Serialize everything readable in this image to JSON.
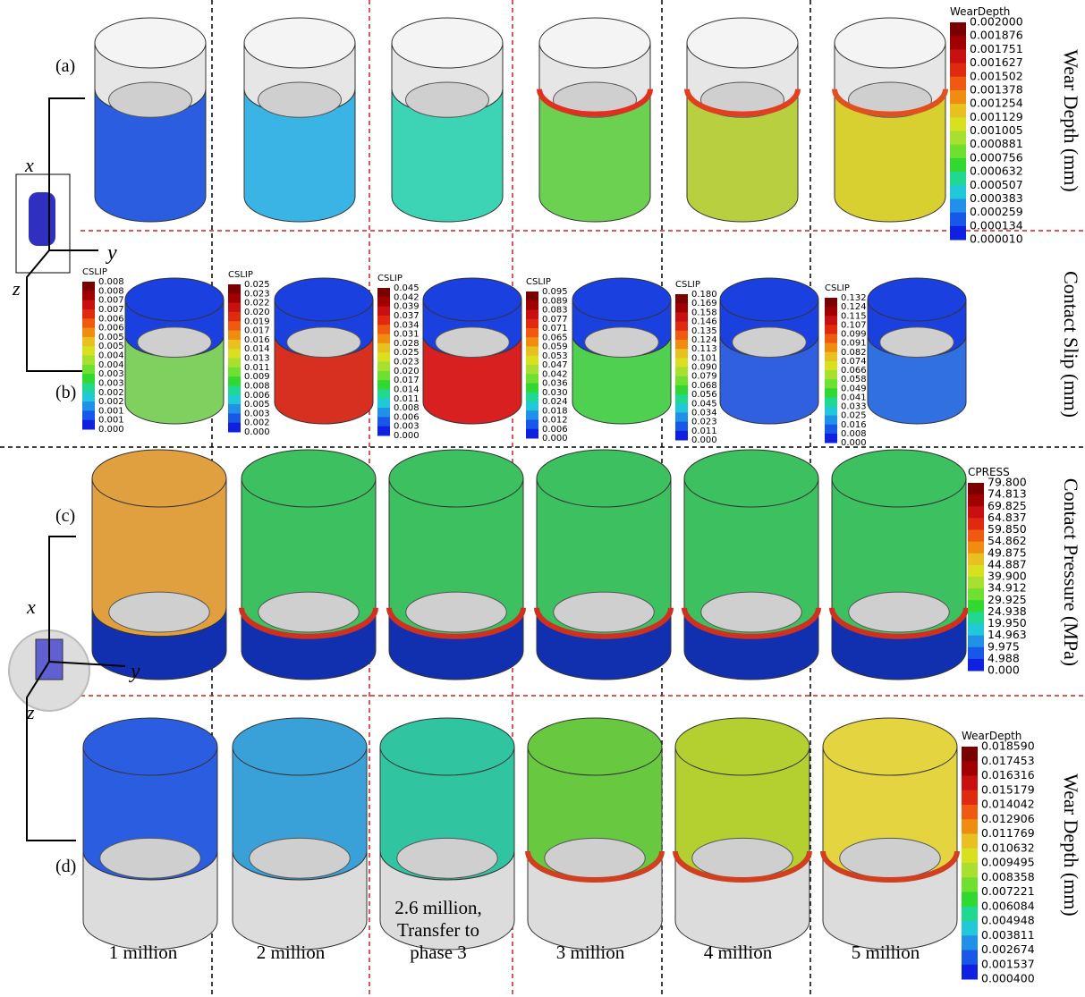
{
  "panels": [
    {
      "label": "(a)",
      "title": "Wear Depth (mm)"
    },
    {
      "label": "(b)",
      "title": "Contact Slip (mm)"
    },
    {
      "label": "(c)",
      "title": "Contact Pressure (MPa)"
    },
    {
      "label": "(d)",
      "title": "Wear Depth (mm)"
    }
  ],
  "legends": [
    {
      "title": "WearDepth",
      "values": [
        "0.002000",
        "0.001876",
        "0.001751",
        "0.001627",
        "0.001502",
        "0.001378",
        "0.001254",
        "0.001129",
        "0.001005",
        "0.000881",
        "0.000756",
        "0.000632",
        "0.000507",
        "0.000383",
        "0.000259",
        "0.000134",
        "0.000010"
      ]
    },
    {
      "title": "CSLIP",
      "values": [
        "0.008",
        "0.008",
        "0.007",
        "0.007",
        "0.006",
        "0.006",
        "0.005",
        "0.005",
        "0.004",
        "0.004",
        "0.003",
        "0.003",
        "0.002",
        "0.002",
        "0.001",
        "0.001",
        "0.000"
      ]
    },
    {
      "title": "CSLIP",
      "values": [
        "0.025",
        "0.023",
        "0.022",
        "0.020",
        "0.019",
        "0.017",
        "0.016",
        "0.014",
        "0.013",
        "0.011",
        "0.009",
        "0.008",
        "0.006",
        "0.005",
        "0.003",
        "0.002",
        "0.000"
      ]
    },
    {
      "title": "CSLIP",
      "values": [
        "0.045",
        "0.042",
        "0.039",
        "0.037",
        "0.034",
        "0.031",
        "0.028",
        "0.025",
        "0.023",
        "0.020",
        "0.017",
        "0.014",
        "0.011",
        "0.008",
        "0.006",
        "0.003",
        "0.000"
      ]
    },
    {
      "title": "CSLIP",
      "values": [
        "0.095",
        "0.089",
        "0.083",
        "0.077",
        "0.071",
        "0.065",
        "0.059",
        "0.053",
        "0.047",
        "0.042",
        "0.036",
        "0.030",
        "0.024",
        "0.018",
        "0.012",
        "0.006",
        "0.000"
      ]
    },
    {
      "title": "CSLIP",
      "values": [
        "0.180",
        "0.169",
        "0.158",
        "0.146",
        "0.135",
        "0.124",
        "0.113",
        "0.101",
        "0.090",
        "0.079",
        "0.068",
        "0.056",
        "0.045",
        "0.034",
        "0.023",
        "0.011",
        "0.000"
      ]
    },
    {
      "title": "CSLIP",
      "values": [
        "0.132",
        "0.124",
        "0.115",
        "0.107",
        "0.099",
        "0.091",
        "0.082",
        "0.074",
        "0.066",
        "0.058",
        "0.049",
        "0.041",
        "0.033",
        "0.025",
        "0.016",
        "0.008",
        "0.000"
      ]
    },
    {
      "title": "CPRESS",
      "values": [
        "79.800",
        "74.813",
        "69.825",
        "64.837",
        "59.850",
        "54.862",
        "49.875",
        "44.887",
        "39.900",
        "34.912",
        "29.925",
        "24.938",
        "19.950",
        "14.963",
        "9.975",
        "4.988",
        "0.000"
      ]
    },
    {
      "title": "WearDepth",
      "values": [
        "0.018590",
        "0.017453",
        "0.016316",
        "0.015179",
        "0.014042",
        "0.012906",
        "0.011769",
        "0.010632",
        "0.009495",
        "0.008358",
        "0.007221",
        "0.006084",
        "0.004948",
        "0.003811",
        "0.002674",
        "0.001537",
        "0.000400"
      ]
    }
  ],
  "columns": [
    [
      "1 million"
    ],
    [
      "2 million"
    ],
    [
      "2.6 million,",
      "Transfer to",
      "phase 3"
    ],
    [
      "3 million"
    ],
    [
      "4 million"
    ],
    [
      "5 million"
    ]
  ],
  "axes": [
    {
      "x": "x",
      "y": "y",
      "z": "z"
    },
    {
      "x": "x",
      "y": "y",
      "z": "z"
    }
  ]
}
